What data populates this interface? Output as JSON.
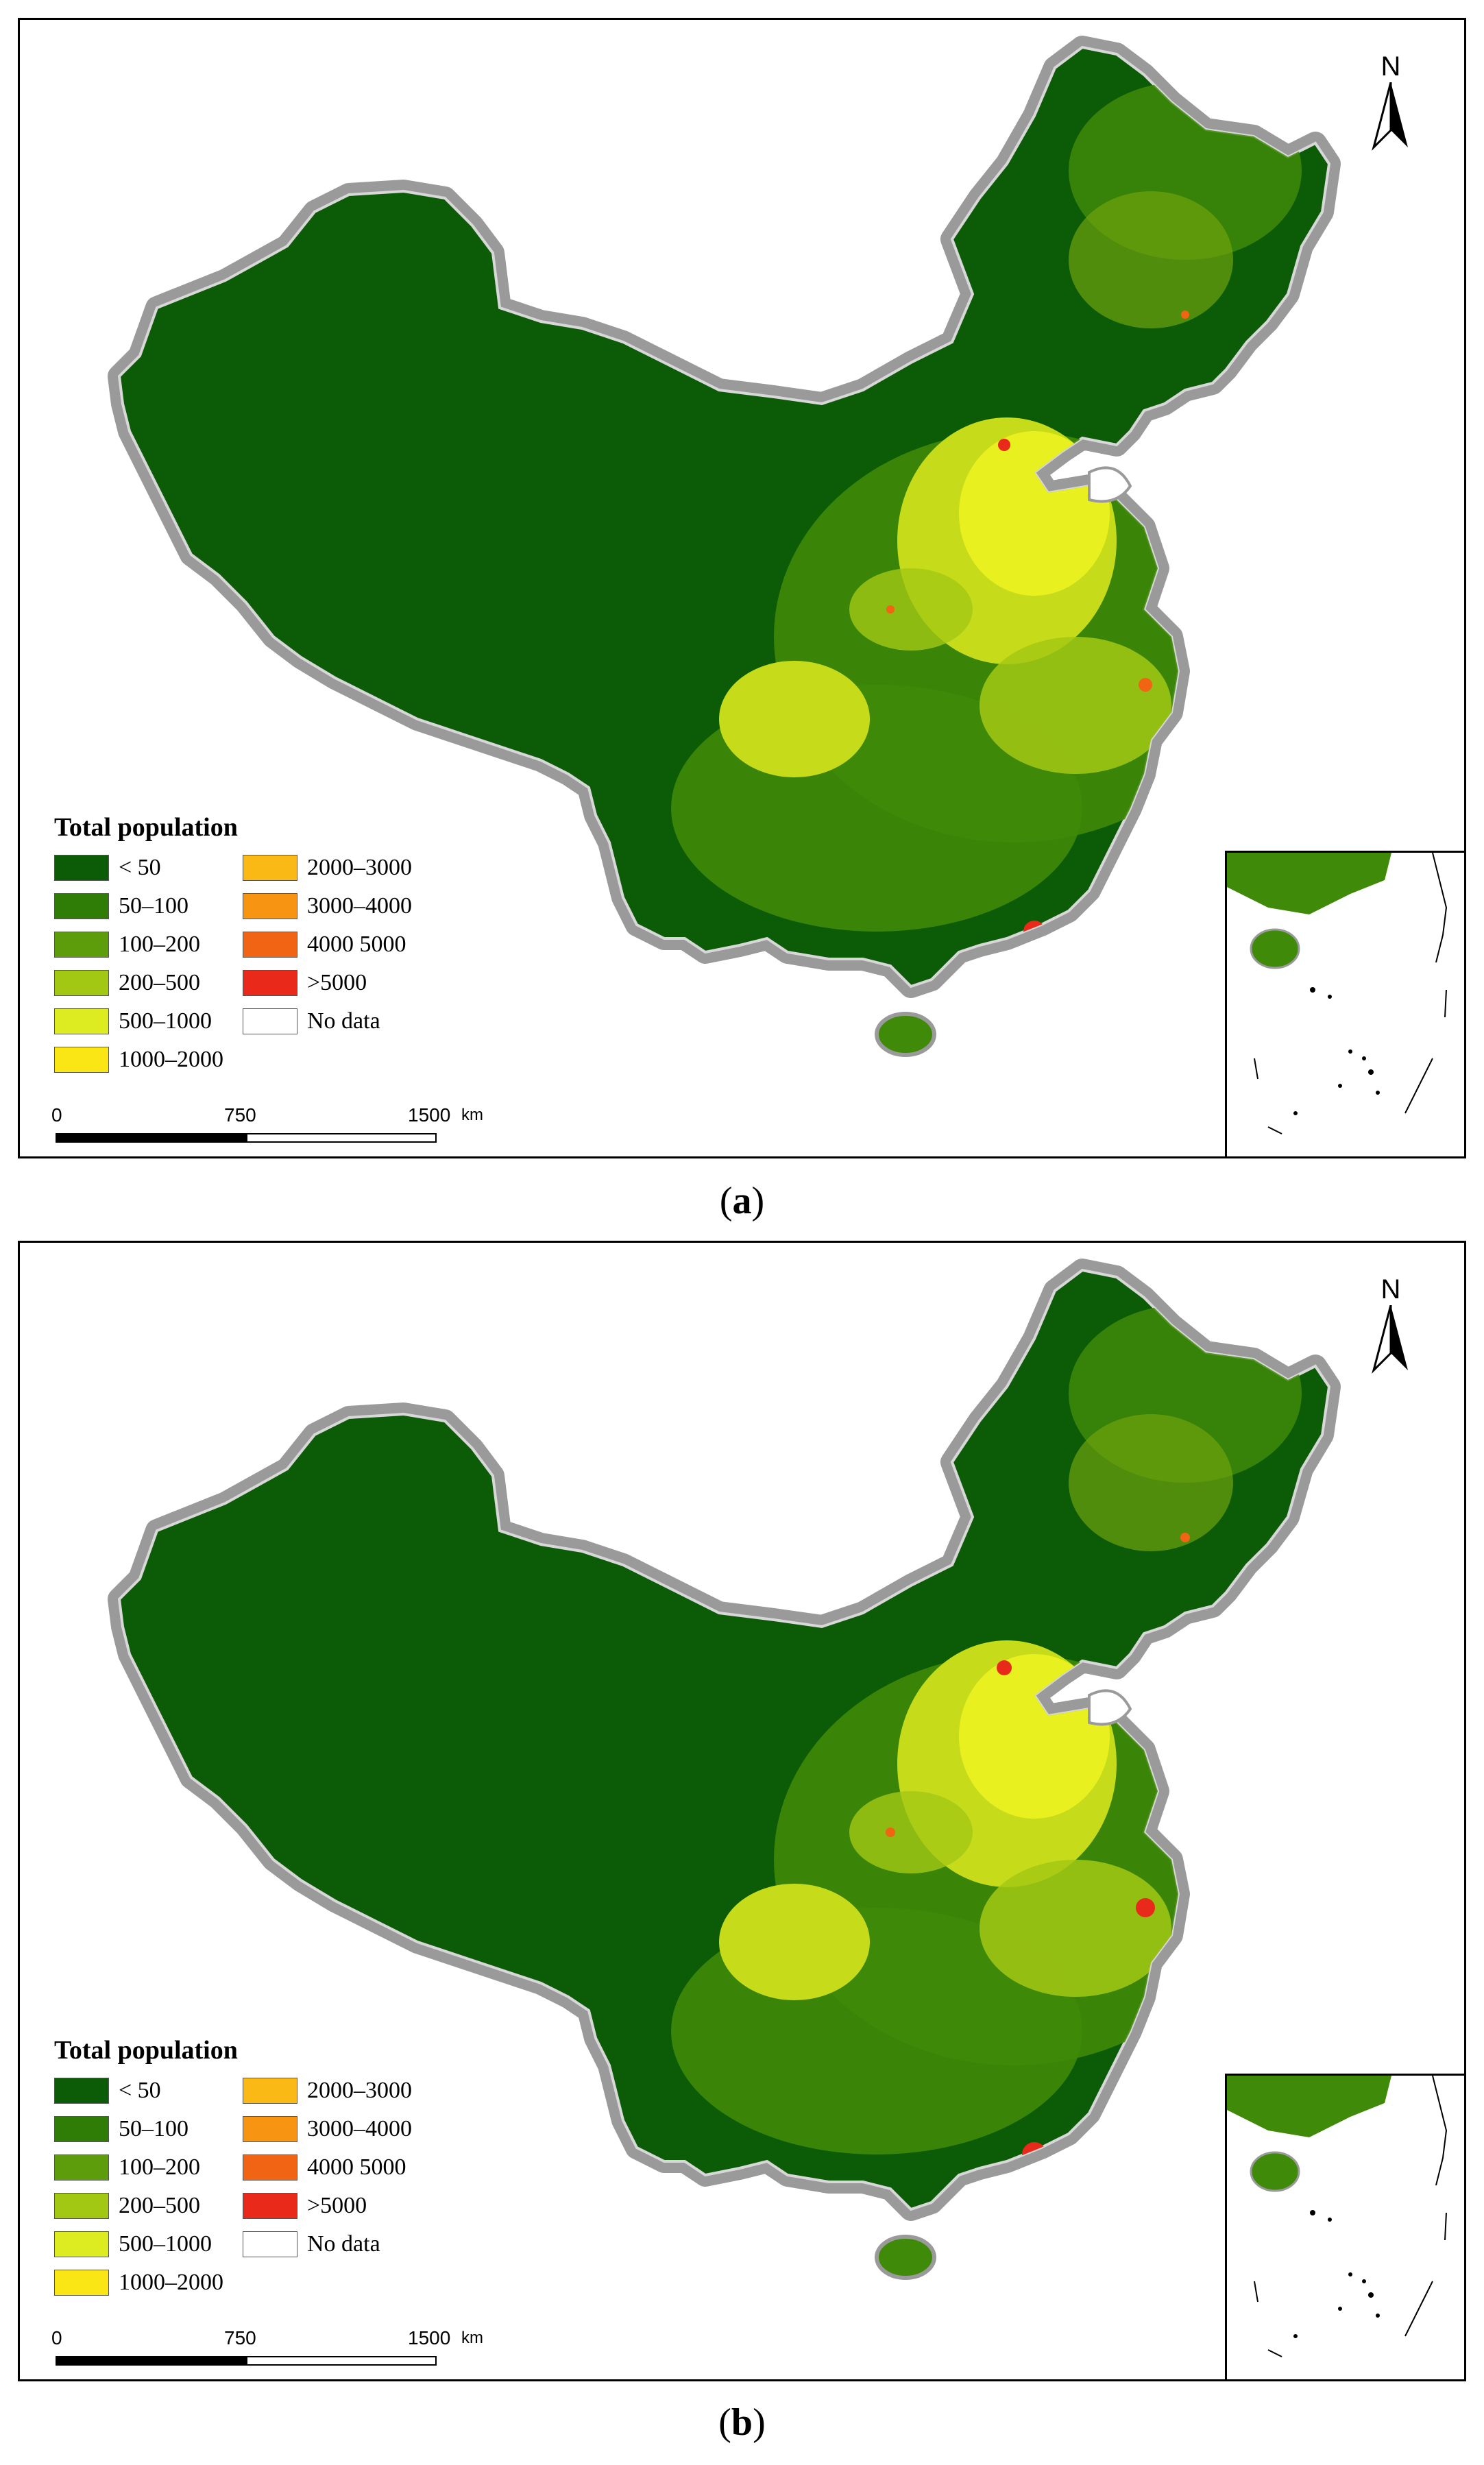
{
  "figure": {
    "panels": [
      {
        "id": "a",
        "caption_letter": "a",
        "legend": {
          "title": "Total population",
          "items": [
            {
              "label": "< 50",
              "color": "#0b5b07"
            },
            {
              "label": "2000–3000",
              "color": "#fbb916"
            },
            {
              "label": "50–100",
              "color": "#2f7d07"
            },
            {
              "label": "3000–4000",
              "color": "#f79412"
            },
            {
              "label": "100–200",
              "color": "#5d9c0a"
            },
            {
              "label": "4000  5000",
              "color": "#f06414"
            },
            {
              "label": "200–500",
              "color": "#a3c814"
            },
            {
              "label": ">5000",
              "color": "#e92a1a"
            },
            {
              "label": "500–1000",
              "color": "#dcec21"
            },
            {
              "label": "No data",
              "color": "#ffffff"
            },
            {
              "label": "1000–2000",
              "color": "#fbe615"
            }
          ]
        },
        "north_arrow": "N",
        "scale": {
          "ticks": [
            "0",
            "750",
            "1500"
          ],
          "unit": "km"
        }
      },
      {
        "id": "b",
        "caption_letter": "b",
        "legend": {
          "title": "Total population",
          "items": [
            {
              "label": "< 50",
              "color": "#0b5b07"
            },
            {
              "label": "2000–3000",
              "color": "#fbb916"
            },
            {
              "label": "50–100",
              "color": "#2f7d07"
            },
            {
              "label": "3000–4000",
              "color": "#f79412"
            },
            {
              "label": "100–200",
              "color": "#5d9c0a"
            },
            {
              "label": "4000  5000",
              "color": "#f06414"
            },
            {
              "label": "200–500",
              "color": "#a3c814"
            },
            {
              "label": ">5000",
              "color": "#e92a1a"
            },
            {
              "label": "500–1000",
              "color": "#dcec21"
            },
            {
              "label": "No data",
              "color": "#ffffff"
            },
            {
              "label": "1000–2000",
              "color": "#fbe615"
            }
          ]
        },
        "north_arrow": "N",
        "scale": {
          "ticks": [
            "0",
            "750",
            "1500"
          ],
          "unit": "km"
        }
      }
    ],
    "map_colors": {
      "border_buffer": "#9a9a9a",
      "dark_green": "#0b5b07",
      "mid_green": "#3f8a08",
      "yellow_green": "#c6dc1a",
      "bright_yellow": "#e8f020",
      "urban_red": "#e92a1a"
    }
  }
}
